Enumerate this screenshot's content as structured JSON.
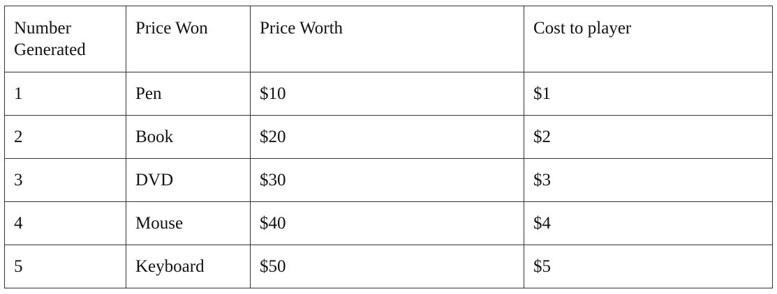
{
  "table": {
    "headers": [
      "Number Generated",
      "Price Won",
      "Price Worth",
      "Cost to player"
    ],
    "rows": [
      [
        "1",
        "Pen",
        "$10",
        "$1"
      ],
      [
        "2",
        "Book",
        "$20",
        "$2"
      ],
      [
        "3",
        "DVD",
        "$30",
        "$3"
      ],
      [
        "4",
        "Mouse",
        "$40",
        "$4"
      ],
      [
        "5",
        "Keyboard",
        "$50",
        "$5"
      ]
    ]
  }
}
